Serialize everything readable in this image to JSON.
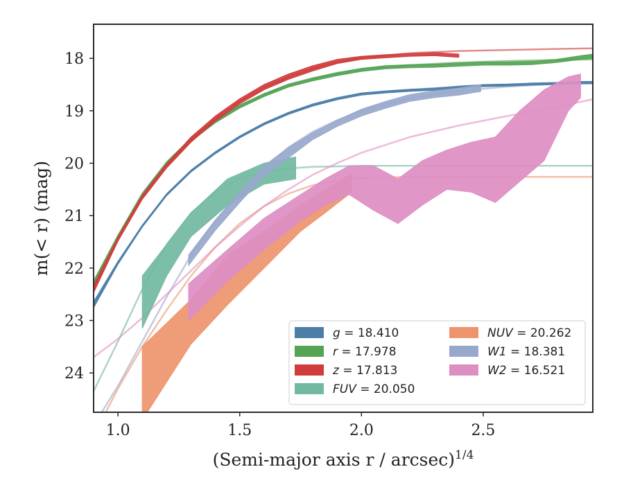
{
  "chart_data": {
    "type": "line",
    "xlabel": "(Semi-major axis r / arcsec)",
    "xlabel_sup": "1/4",
    "ylabel": "m(< r) (mag)",
    "xlim": [
      0.9,
      2.95
    ],
    "ylim": [
      24.75,
      17.35
    ],
    "y_inverted": true,
    "grid": false,
    "legend_position": "lower-right",
    "x_ticks": [
      1.0,
      1.5,
      2.0,
      2.5
    ],
    "x_tick_labels": [
      "1.0",
      "1.5",
      "2.0",
      "2.5"
    ],
    "y_ticks": [
      18,
      19,
      20,
      21,
      22,
      23,
      24
    ],
    "y_tick_labels": [
      "18",
      "19",
      "20",
      "21",
      "22",
      "23",
      "24"
    ],
    "legend": [
      {
        "label": "g = 18.410",
        "var": "g",
        "value": "18.410",
        "color": "#4c7ea8"
      },
      {
        "label": "r = 17.978",
        "var": "r",
        "value": "17.978",
        "color": "#55a355"
      },
      {
        "label": "z = 17.813",
        "var": "z",
        "value": "17.813",
        "color": "#d03b3b"
      },
      {
        "label": "FUV = 20.050",
        "var": "FUV",
        "value": "20.050",
        "color": "#72b8a2"
      },
      {
        "label": "NUV = 20.262",
        "var": "NUV",
        "value": "20.262",
        "color": "#ee946d"
      },
      {
        "label": "W1 = 18.381",
        "var": "W1",
        "value": "18.381",
        "color": "#98a8cc"
      },
      {
        "label": "W2 = 16.521",
        "var": "W2",
        "value": "16.521",
        "color": "#dd8ec3"
      }
    ],
    "series": [
      {
        "name": "g = 18.410",
        "color": "#4c7ea8",
        "model": {
          "x": [
            0.9,
            1.0,
            1.1,
            1.2,
            1.3,
            1.4,
            1.5,
            1.6,
            1.7,
            1.8,
            1.9,
            2.0,
            2.2,
            2.4,
            2.6,
            2.8,
            2.95
          ],
          "y": [
            22.7,
            21.9,
            21.2,
            20.6,
            20.15,
            19.8,
            19.5,
            19.25,
            19.05,
            18.9,
            18.78,
            18.69,
            18.6,
            18.54,
            18.51,
            18.49,
            18.48
          ]
        },
        "obs_x": [
          0.9,
          1.0,
          1.1,
          1.2,
          1.3,
          1.4,
          1.5,
          1.6,
          1.7,
          1.8,
          1.9,
          2.0,
          2.1,
          2.2,
          2.3,
          2.4,
          2.5,
          2.6,
          2.7,
          2.8,
          2.9,
          2.95
        ],
        "obs_lo": [
          22.76,
          21.93,
          21.22,
          20.62,
          20.17,
          19.82,
          19.52,
          19.27,
          19.07,
          18.91,
          18.79,
          18.7,
          18.66,
          18.63,
          18.61,
          18.57,
          18.54,
          18.53,
          18.51,
          18.5,
          18.48,
          18.48
        ],
        "obs_hi": [
          22.64,
          21.87,
          21.18,
          20.58,
          20.13,
          19.78,
          19.48,
          19.23,
          19.03,
          18.87,
          18.75,
          18.66,
          18.62,
          18.59,
          18.57,
          18.53,
          18.5,
          18.49,
          18.47,
          18.46,
          18.44,
          18.44
        ]
      },
      {
        "name": "r = 17.978",
        "color": "#55a355",
        "model": {
          "x": [
            0.9,
            1.0,
            1.1,
            1.2,
            1.3,
            1.4,
            1.5,
            1.6,
            1.7,
            1.8,
            1.9,
            2.0,
            2.2,
            2.4,
            2.6,
            2.8,
            2.95
          ],
          "y": [
            22.3,
            21.4,
            20.6,
            20.0,
            19.55,
            19.2,
            18.92,
            18.7,
            18.52,
            18.4,
            18.3,
            18.22,
            18.13,
            18.08,
            18.05,
            18.03,
            18.02
          ]
        },
        "obs_x": [
          0.9,
          1.0,
          1.1,
          1.2,
          1.3,
          1.4,
          1.5,
          1.6,
          1.7,
          1.8,
          1.9,
          2.0,
          2.1,
          2.2,
          2.3,
          2.4,
          2.5,
          2.6,
          2.7,
          2.8,
          2.9,
          2.95
        ],
        "obs_lo": [
          22.36,
          21.43,
          20.63,
          20.03,
          19.58,
          19.23,
          18.95,
          18.73,
          18.55,
          18.43,
          18.33,
          18.25,
          18.2,
          18.18,
          18.17,
          18.15,
          18.13,
          18.13,
          18.12,
          18.08,
          18.02,
          18.0
        ],
        "obs_hi": [
          22.24,
          21.37,
          20.57,
          19.97,
          19.52,
          19.17,
          18.89,
          18.67,
          18.49,
          18.37,
          18.27,
          18.19,
          18.14,
          18.12,
          18.11,
          18.09,
          18.07,
          18.07,
          18.06,
          18.02,
          17.95,
          17.92
        ]
      },
      {
        "name": "z = 17.813",
        "color": "#d03b3b",
        "model": {
          "x": [
            0.9,
            1.0,
            1.1,
            1.2,
            1.3,
            1.4,
            1.5,
            1.6,
            1.7,
            1.8,
            1.9,
            2.0,
            2.2,
            2.4,
            2.6,
            2.8,
            2.95
          ],
          "y": [
            22.4,
            21.45,
            20.65,
            20.05,
            19.55,
            19.15,
            18.82,
            18.56,
            18.36,
            18.2,
            18.08,
            17.99,
            17.9,
            17.86,
            17.84,
            17.82,
            17.81
          ]
        },
        "obs_x": [
          0.9,
          1.0,
          1.1,
          1.2,
          1.3,
          1.4,
          1.5,
          1.6,
          1.7,
          1.8,
          1.9,
          2.0,
          2.1,
          2.2,
          2.3,
          2.4
        ],
        "obs_lo": [
          22.47,
          21.49,
          20.69,
          20.09,
          19.6,
          19.2,
          18.87,
          18.6,
          18.4,
          18.24,
          18.1,
          18.02,
          17.99,
          17.96,
          17.95,
          17.98
        ],
        "obs_hi": [
          22.33,
          21.41,
          20.61,
          20.01,
          19.5,
          19.1,
          18.77,
          18.5,
          18.3,
          18.14,
          18.02,
          17.96,
          17.93,
          17.91,
          17.89,
          17.92
        ]
      },
      {
        "name": "FUV = 20.050",
        "color": "#72b8a2",
        "model": {
          "x": [
            0.9,
            1.0,
            1.1,
            1.2,
            1.3,
            1.4,
            1.5,
            1.6,
            1.7,
            1.8,
            1.9,
            2.0,
            2.2,
            2.4,
            2.6,
            2.8,
            2.95
          ],
          "y": [
            24.35,
            23.4,
            22.4,
            21.55,
            20.95,
            20.55,
            20.3,
            20.17,
            20.1,
            20.07,
            20.06,
            20.05,
            20.05,
            20.05,
            20.05,
            20.05,
            20.05
          ]
        },
        "obs_x": [
          1.1,
          1.2,
          1.3,
          1.45,
          1.6,
          1.73
        ],
        "obs_lo": [
          23.15,
          22.15,
          21.4,
          20.8,
          20.4,
          20.3
        ],
        "obs_hi": [
          22.15,
          21.55,
          20.95,
          20.3,
          20.0,
          19.88
        ]
      },
      {
        "name": "NUV = 20.262",
        "color": "#ee946d",
        "model": {
          "x": [
            0.9,
            1.0,
            1.1,
            1.2,
            1.3,
            1.4,
            1.5,
            1.6,
            1.7,
            1.8,
            1.9,
            2.0,
            2.2,
            2.4,
            2.6,
            2.8,
            2.95
          ],
          "y": [
            25.2,
            24.3,
            23.5,
            22.8,
            22.15,
            21.6,
            21.15,
            20.82,
            20.58,
            20.42,
            20.33,
            20.28,
            20.26,
            20.26,
            20.26,
            20.26,
            20.26
          ]
        },
        "obs_x": [
          1.1,
          1.3,
          1.45,
          1.6,
          1.75,
          1.85,
          1.96
        ],
        "obs_lo": [
          24.9,
          23.45,
          22.7,
          22.0,
          21.3,
          20.95,
          20.55
        ],
        "obs_hi": [
          23.5,
          22.6,
          21.75,
          21.3,
          20.8,
          20.5,
          20.2
        ]
      },
      {
        "name": "W1 = 18.381",
        "color": "#98a8cc",
        "model": {
          "x": [
            0.9,
            1.0,
            1.1,
            1.2,
            1.3,
            1.4,
            1.5,
            1.6,
            1.7,
            1.8,
            1.9,
            2.0,
            2.2,
            2.4,
            2.6,
            2.8,
            2.95
          ],
          "y": [
            25.0,
            24.25,
            23.4,
            22.55,
            21.75,
            21.1,
            20.55,
            20.1,
            19.7,
            19.4,
            19.18,
            19.0,
            18.76,
            18.62,
            18.54,
            18.49,
            18.47
          ]
        },
        "obs_x": [
          1.29,
          1.4,
          1.5,
          1.6,
          1.7,
          1.8,
          1.9,
          2.0,
          2.1,
          2.2,
          2.3,
          2.4,
          2.49
        ],
        "obs_lo": [
          21.95,
          21.28,
          20.75,
          20.25,
          19.9,
          19.55,
          19.3,
          19.1,
          18.95,
          18.82,
          18.75,
          18.7,
          18.63
        ],
        "obs_hi": [
          21.75,
          21.08,
          20.55,
          20.05,
          19.7,
          19.42,
          19.18,
          18.97,
          18.82,
          18.69,
          18.62,
          18.57,
          18.5
        ]
      },
      {
        "name": "W2 = 16.521",
        "color": "#dd8ec3",
        "model": {
          "x": [
            0.9,
            1.0,
            1.1,
            1.2,
            1.3,
            1.4,
            1.5,
            1.6,
            1.7,
            1.8,
            1.9,
            2.0,
            2.2,
            2.4,
            2.6,
            2.8,
            2.95
          ],
          "y": [
            23.7,
            23.35,
            22.95,
            22.5,
            22.05,
            21.6,
            21.2,
            20.82,
            20.5,
            20.22,
            20.0,
            19.8,
            19.5,
            19.28,
            19.1,
            18.93,
            18.78
          ]
        },
        "obs_x": [
          1.29,
          1.45,
          1.6,
          1.75,
          1.85,
          1.95,
          2.05,
          2.15,
          2.25,
          2.35,
          2.45,
          2.55,
          2.65,
          2.75,
          2.85,
          2.9
        ],
        "obs_lo": [
          23.0,
          22.25,
          21.65,
          21.1,
          20.8,
          20.6,
          20.9,
          21.15,
          20.8,
          20.5,
          20.55,
          20.75,
          20.35,
          19.95,
          19.0,
          18.75
        ],
        "obs_hi": [
          22.3,
          21.65,
          21.05,
          20.6,
          20.3,
          20.05,
          20.05,
          20.3,
          19.95,
          19.75,
          19.6,
          19.5,
          19.0,
          18.6,
          18.35,
          18.3
        ]
      }
    ]
  }
}
